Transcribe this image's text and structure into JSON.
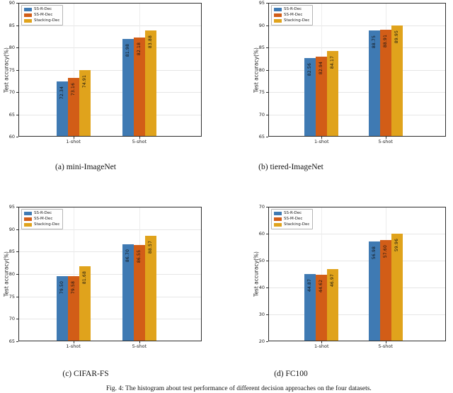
{
  "figure_caption": "Fig. 4: The histogram about test performance of different decision approaches on the four datasets.",
  "colors": {
    "blue": "#3f7ab3",
    "orange": "#d25d17",
    "gold": "#e0a31c",
    "axis": "#2e2e2e",
    "grid": "#e6e6e6",
    "label_text": "#111111"
  },
  "chart_data": [
    {
      "id": "a",
      "type": "bar",
      "title": "(a) mini-ImageNet",
      "ylabel": "Test accuracy(%)",
      "categories": [
        "1-shot",
        "5-shot"
      ],
      "series": [
        {
          "name": "SS-R-Dec",
          "color": "#3f7ab3",
          "values": [
            72.34,
            81.98
          ]
        },
        {
          "name": "SS-M-Dec",
          "color": "#d25d17",
          "values": [
            73.16,
            82.18
          ]
        },
        {
          "name": "Stacking-Dec",
          "color": "#e0a31c",
          "values": [
            74.91,
            83.88
          ]
        }
      ],
      "ylim": [
        60,
        90
      ],
      "yticks": [
        60,
        65,
        70,
        75,
        80,
        85,
        90
      ],
      "grid": true,
      "legend_position": "upper left"
    },
    {
      "id": "b",
      "type": "bar",
      "title": "(b) tiered-ImageNet",
      "ylabel": "Test accuracy(%)",
      "categories": [
        "1-shot",
        "5-shot"
      ],
      "series": [
        {
          "name": "SS-R-Dec",
          "color": "#3f7ab3",
          "values": [
            82.56,
            88.75
          ]
        },
        {
          "name": "SS-M-Dec",
          "color": "#d25d17",
          "values": [
            82.94,
            88.91
          ]
        },
        {
          "name": "Stacking-Dec",
          "color": "#e0a31c",
          "values": [
            84.17,
            89.95
          ]
        }
      ],
      "ylim": [
        65,
        95
      ],
      "yticks": [
        65,
        70,
        75,
        80,
        85,
        90,
        95
      ],
      "grid": true,
      "legend_position": "upper left"
    },
    {
      "id": "c",
      "type": "bar",
      "title": "(c) CIFAR-FS",
      "ylabel": "Test accuracy(%)",
      "categories": [
        "1-shot",
        "5-shot"
      ],
      "series": [
        {
          "name": "SS-R-Dec",
          "color": "#3f7ab3",
          "values": [
            79.5,
            86.7
          ]
        },
        {
          "name": "SS-M-Dec",
          "color": "#d25d17",
          "values": [
            79.58,
            86.55
          ]
        },
        {
          "name": "Stacking-Dec",
          "color": "#e0a31c",
          "values": [
            81.68,
            88.57
          ]
        }
      ],
      "ylim": [
        65,
        95
      ],
      "yticks": [
        65,
        70,
        75,
        80,
        85,
        90,
        95
      ],
      "grid": true,
      "legend_position": "upper left"
    },
    {
      "id": "d",
      "type": "bar",
      "title": "(d) FC100",
      "ylabel": "Test accuracy(%)",
      "categories": [
        "1-shot",
        "5-shot"
      ],
      "series": [
        {
          "name": "SS-R-Dec",
          "color": "#3f7ab3",
          "values": [
            44.87,
            56.98
          ]
        },
        {
          "name": "SS-M-Dec",
          "color": "#d25d17",
          "values": [
            44.62,
            57.6
          ]
        },
        {
          "name": "Stacking-Dec",
          "color": "#e0a31c",
          "values": [
            46.97,
            59.96
          ]
        }
      ],
      "ylim": [
        20,
        70
      ],
      "yticks": [
        20,
        30,
        40,
        50,
        60,
        70
      ],
      "grid": true,
      "legend_position": "upper left"
    }
  ]
}
